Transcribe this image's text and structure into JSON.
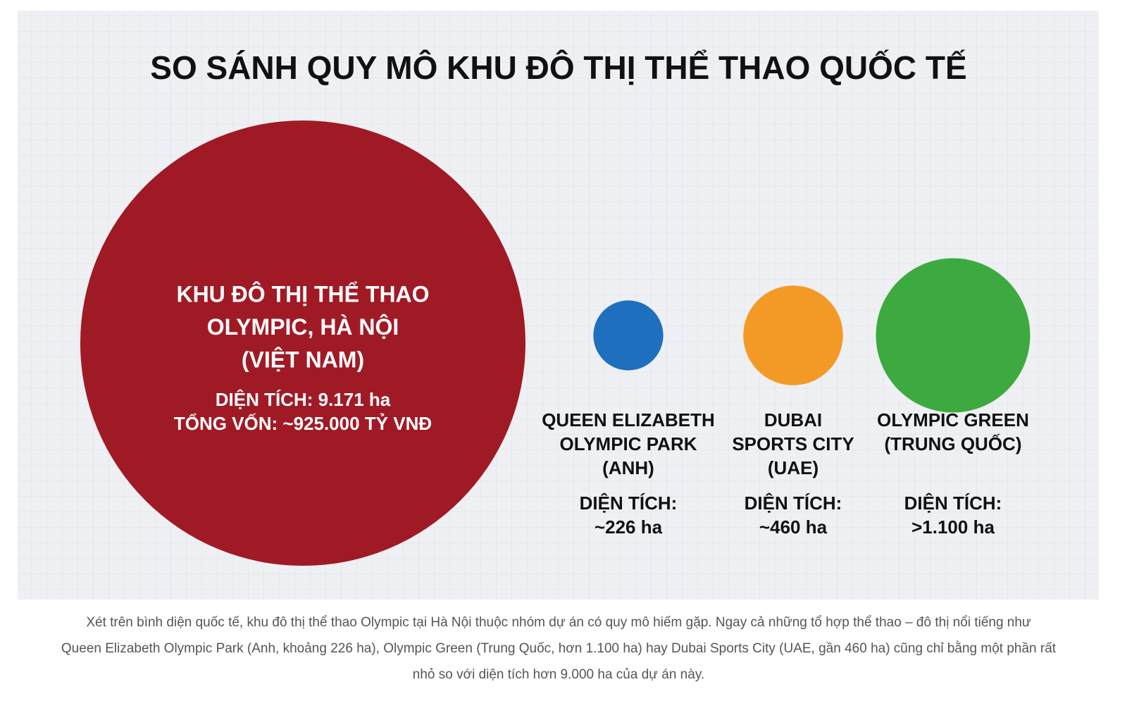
{
  "chart_data": {
    "type": "bubble",
    "title": "SO SÁNH QUY MÔ KHU ĐÔ THỊ THỂ THAO QUỐC TẾ",
    "categories": [
      [
        "KHU ĐÔ THỊ THỂ THAO",
        "OLYMPIC, HÀ NỘI",
        "(VIỆT NAM)"
      ],
      [
        "QUEEN ELIZABETH",
        "OLYMPIC PARK",
        "(ANH)"
      ],
      [
        "DUBAI",
        "SPORTS CITY",
        "(UAE)"
      ],
      [
        "OLYMPIC GREEN",
        "(TRUNG QUỐC)"
      ]
    ],
    "values": [
      9171,
      226,
      460,
      1100
    ],
    "value_labels": [
      [
        "DIỆN TÍCH: 9.171 ha"
      ],
      [
        "DIỆN TÍCH:",
        "~226 ha"
      ],
      [
        "DIỆN TÍCH:",
        "~460 ha"
      ],
      [
        "DIỆN TÍCH:",
        ">1.100 ha"
      ]
    ],
    "colors": [
      "#a01a26",
      "#1f6fbf",
      "#f39a26",
      "#3daa3f"
    ],
    "annotations": [
      "TỔNG VỐN: ~925.000 TỶ VNĐ"
    ]
  },
  "caption": [
    "Xét trên bình diện quốc tế, khu đô thị thể thao Olympic tại Hà Nội thuộc nhóm dự án có quy mô hiếm gặp. Ngay cả những tổ hợp thể thao – đô thị nổi tiếng như",
    "Queen Elizabeth Olympic Park (Anh, khoảng 226 ha), Olympic Green (Trung Quốc, hơn 1.100 ha) hay Dubai Sports City (UAE, gần 460 ha) cũng chỉ bằng một phần rất",
    "nhỏ so với diện tích hơn 9.000 ha của dự án này."
  ]
}
